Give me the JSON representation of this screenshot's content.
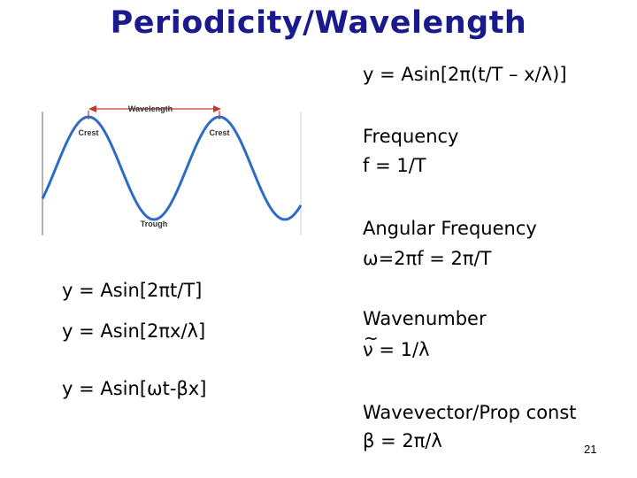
{
  "title": "Periodicity/Wavelength",
  "main_equation": "y = Asin[2π(t/T – x/λ)]",
  "frequency": {
    "label": "Frequency",
    "formula": "f = 1/T"
  },
  "angular_frequency": {
    "label": "Angular Frequency",
    "formula": "ω=2πf = 2π/T"
  },
  "wavenumber": {
    "label": "Wavenumber",
    "symbol": "ν",
    "formula_rest": " = 1/λ"
  },
  "wavevector": {
    "label": "Wavevector/Prop const",
    "formula": "β = 2π/λ"
  },
  "left_equations": {
    "time": "y = Asin[2πt/T]",
    "space": "y = Asin[2πx/λ]",
    "combined": "y = Asin[ωt-βx]"
  },
  "diagram": {
    "wavelength_label": "Wavelength",
    "crest_left_label": "Crest",
    "crest_right_label": "Crest",
    "trough_label": "Trough",
    "wave_color": "#2e6bc6",
    "arrow_color": "#c0392b"
  },
  "page_number": "21"
}
